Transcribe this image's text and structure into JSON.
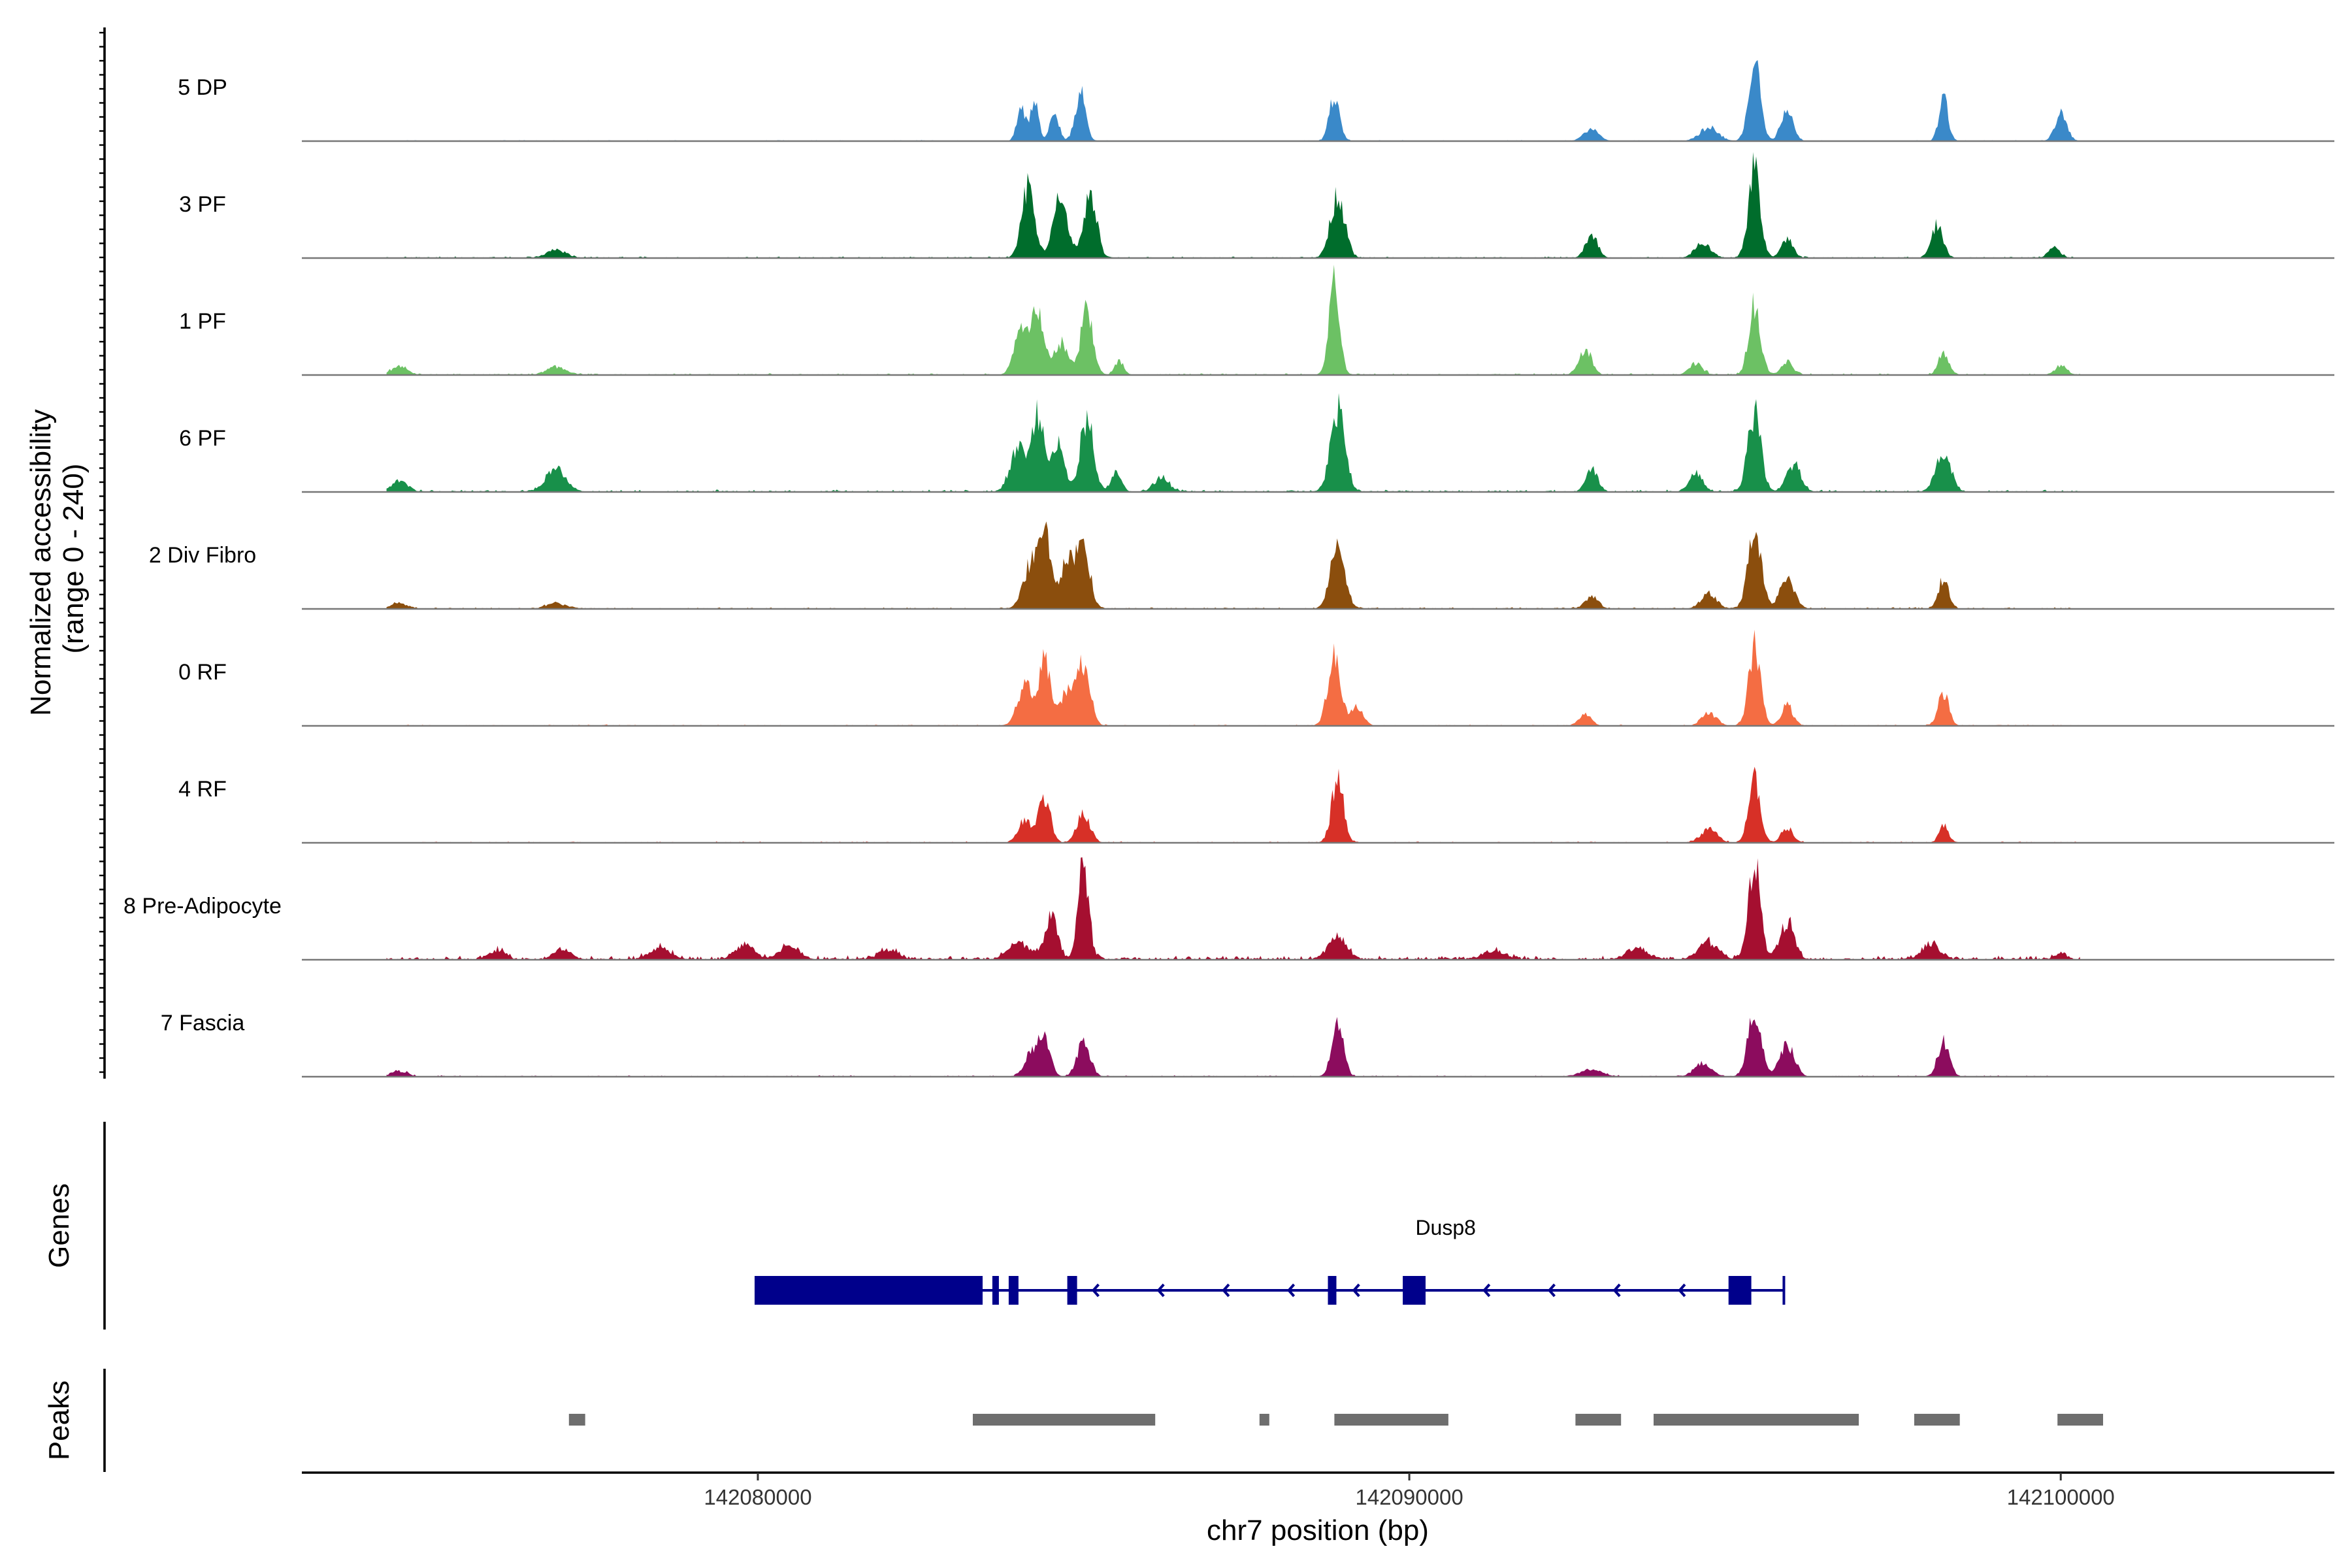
{
  "chart_data": {
    "type": "area",
    "title": "",
    "xlabel": "chr7 position (bp)",
    "ylabel": "Normalized accessibility\n(range 0 - 240)",
    "ylabel_lines": [
      "Normalized accessibility",
      "(range 0 - 240)"
    ],
    "y_range": [
      0,
      240
    ],
    "x_range": [
      142073000,
      142104200
    ],
    "x_ticks": [
      142080000,
      142090000,
      142100000
    ],
    "x_tick_labels": [
      "142080000",
      "142090000",
      "142100000"
    ],
    "series": [
      {
        "name": "5 DP",
        "color": "#3A89C9",
        "noise": 0.03,
        "peaks": [
          [
            142084050,
            170,
            70
          ],
          [
            142084250,
            200,
            60
          ],
          [
            142084550,
            150,
            70
          ],
          [
            142084950,
            260,
            80
          ],
          [
            142088850,
            230,
            80
          ],
          [
            142092800,
            60,
            120
          ],
          [
            142094600,
            70,
            140
          ],
          [
            142095300,
            410,
            90
          ],
          [
            142095800,
            170,
            90
          ],
          [
            142098200,
            230,
            70
          ],
          [
            142100000,
            150,
            90
          ]
        ]
      },
      {
        "name": "3 PF",
        "color": "#006D2C",
        "noise": 0.05,
        "peaks": [
          [
            142076900,
            40,
            150
          ],
          [
            142084150,
            380,
            100
          ],
          [
            142084650,
            320,
            110
          ],
          [
            142085100,
            330,
            100
          ],
          [
            142088900,
            330,
            110
          ],
          [
            142092800,
            130,
            90
          ],
          [
            142094500,
            80,
            120
          ],
          [
            142095300,
            470,
            90
          ],
          [
            142095800,
            100,
            90
          ],
          [
            142098100,
            180,
            90
          ],
          [
            142099900,
            50,
            90
          ]
        ]
      },
      {
        "name": "1 PF",
        "color": "#6CC164",
        "noise": 0.05,
        "peaks": [
          [
            142074500,
            50,
            120
          ],
          [
            142076900,
            40,
            150
          ],
          [
            142084050,
            250,
            110
          ],
          [
            142084300,
            330,
            90
          ],
          [
            142084650,
            170,
            110
          ],
          [
            142085050,
            360,
            90
          ],
          [
            142085550,
            70,
            70
          ],
          [
            142088850,
            540,
            80
          ],
          [
            142092700,
            130,
            100
          ],
          [
            142094400,
            60,
            100
          ],
          [
            142095300,
            380,
            90
          ],
          [
            142095800,
            70,
            90
          ],
          [
            142098200,
            120,
            80
          ],
          [
            142100000,
            50,
            90
          ]
        ]
      },
      {
        "name": "6 PF",
        "color": "#18904A",
        "noise": 0.07,
        "peaks": [
          [
            142074500,
            60,
            120
          ],
          [
            142076900,
            120,
            150
          ],
          [
            142084000,
            240,
            120
          ],
          [
            142084300,
            400,
            90
          ],
          [
            142084600,
            260,
            100
          ],
          [
            142085050,
            390,
            100
          ],
          [
            142085500,
            100,
            80
          ],
          [
            142086200,
            80,
            110
          ],
          [
            142088900,
            430,
            110
          ],
          [
            142092800,
            120,
            90
          ],
          [
            142094400,
            100,
            100
          ],
          [
            142095300,
            420,
            100
          ],
          [
            142095900,
            140,
            110
          ],
          [
            142098200,
            210,
            110
          ]
        ]
      },
      {
        "name": "2 Div Fibro",
        "color": "#8B4E0D",
        "noise": 0.05,
        "peaks": [
          [
            142074500,
            30,
            120
          ],
          [
            142076900,
            30,
            150
          ],
          [
            142084200,
            240,
            120
          ],
          [
            142084400,
            380,
            90
          ],
          [
            142084750,
            250,
            110
          ],
          [
            142085000,
            320,
            100
          ],
          [
            142088900,
            330,
            110
          ],
          [
            142092800,
            70,
            100
          ],
          [
            142094600,
            80,
            120
          ],
          [
            142095300,
            430,
            100
          ],
          [
            142095800,
            160,
            110
          ],
          [
            142098200,
            160,
            80
          ]
        ]
      },
      {
        "name": "0 RF",
        "color": "#F46D43",
        "noise": 0.04,
        "peaks": [
          [
            142084100,
            210,
            110
          ],
          [
            142084400,
            340,
            90
          ],
          [
            142084750,
            180,
            110
          ],
          [
            142085000,
            330,
            100
          ],
          [
            142088850,
            360,
            100
          ],
          [
            142089200,
            100,
            90
          ],
          [
            142092700,
            60,
            90
          ],
          [
            142094600,
            70,
            110
          ],
          [
            142095300,
            420,
            90
          ],
          [
            142095800,
            110,
            90
          ],
          [
            142098200,
            180,
            80
          ]
        ]
      },
      {
        "name": "4 RF",
        "color": "#D73027",
        "noise": 0.04,
        "peaks": [
          [
            142084100,
            120,
            100
          ],
          [
            142084400,
            240,
            90
          ],
          [
            142085000,
            150,
            100
          ],
          [
            142088900,
            340,
            90
          ],
          [
            142094600,
            70,
            130
          ],
          [
            142095300,
            340,
            90
          ],
          [
            142095800,
            80,
            90
          ],
          [
            142098200,
            90,
            70
          ]
        ]
      },
      {
        "name": "8 Pre-Adipocyte",
        "color": "#A50F30",
        "noise": 0.12,
        "peaks": [
          [
            142076000,
            50,
            120
          ],
          [
            142077000,
            60,
            120
          ],
          [
            142078500,
            60,
            160
          ],
          [
            142079800,
            80,
            150
          ],
          [
            142080500,
            70,
            150
          ],
          [
            142082000,
            50,
            150
          ],
          [
            142084000,
            90,
            160
          ],
          [
            142084500,
            220,
            100
          ],
          [
            142085000,
            520,
            80
          ],
          [
            142088900,
            120,
            140
          ],
          [
            142091300,
            50,
            160
          ],
          [
            142093500,
            60,
            160
          ],
          [
            142094600,
            90,
            150
          ],
          [
            142095300,
            540,
            90
          ],
          [
            142095800,
            200,
            110
          ],
          [
            142098000,
            80,
            140
          ],
          [
            142100000,
            30,
            100
          ]
        ]
      },
      {
        "name": "7 Fascia",
        "color": "#8C0C5E",
        "noise": 0.04,
        "peaks": [
          [
            142074500,
            30,
            120
          ],
          [
            142084200,
            120,
            110
          ],
          [
            142084400,
            200,
            90
          ],
          [
            142085000,
            180,
            100
          ],
          [
            142088900,
            270,
            90
          ],
          [
            142092800,
            40,
            160
          ],
          [
            142094500,
            70,
            130
          ],
          [
            142095300,
            350,
            100
          ],
          [
            142095800,
            170,
            110
          ],
          [
            142098200,
            180,
            90
          ]
        ]
      }
    ],
    "genes": [
      {
        "name": "Dusp8",
        "strand": "-",
        "start": 142079950,
        "end": 142095750,
        "exons": [
          [
            142079950,
            142083450
          ],
          [
            142083600,
            142083700
          ],
          [
            142083850,
            142084000
          ],
          [
            142084750,
            142084900
          ],
          [
            142088750,
            142088880
          ],
          [
            142089900,
            142090250
          ],
          [
            142094900,
            142095250
          ]
        ]
      }
    ],
    "peaks": [
      [
        142077100,
        142077350
      ],
      [
        142083300,
        142086100
      ],
      [
        142087700,
        142087850
      ],
      [
        142088850,
        142090600
      ],
      [
        142092550,
        142093250
      ],
      [
        142093750,
        142096900
      ],
      [
        142097750,
        142098450
      ],
      [
        142099950,
        142100650
      ]
    ],
    "panel_labels": [
      "Genes",
      "Peaks"
    ]
  }
}
